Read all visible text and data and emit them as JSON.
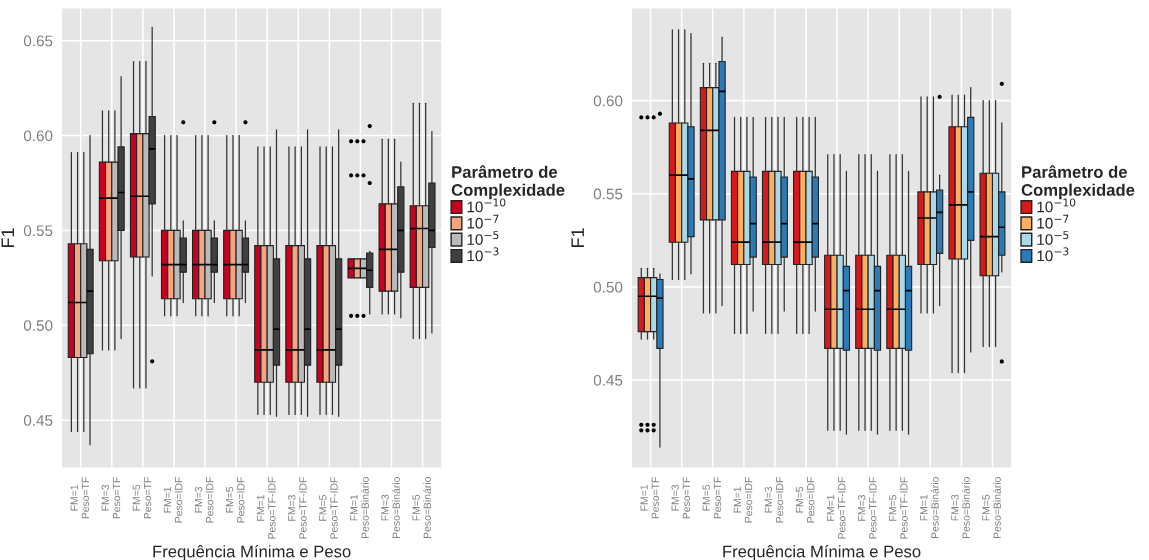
{
  "chart_data": [
    {
      "type": "box",
      "xlabel": "Frequência Mínima e Peso",
      "ylabel": "F1",
      "legend_title": "Parâmetro de\nComplexidade",
      "legend": "right",
      "grid": true,
      "categories": [
        "FM=1\nPeso=TF",
        "FM=3\nPeso=TF",
        "FM=5\nPeso=TF",
        "FM=1\nPeso=IDF",
        "FM=3\nPeso=IDF",
        "FM=5\nPeso=IDF",
        "FM=1\nPeso=TF-IDF",
        "FM=3\nPeso=TF-IDF",
        "FM=5\nPeso=TF-IDF",
        "FM=1\nPeso=Binário",
        "FM=3\nPeso=Binário",
        "FM=5\nPeso=Binário"
      ],
      "ylim": [
        0.425,
        0.667
      ],
      "yticks": [
        {
          "value": 0.45,
          "label": "0.45"
        },
        {
          "value": 0.5,
          "label": "0.50"
        },
        {
          "value": 0.55,
          "label": "0.55"
        },
        {
          "value": 0.6,
          "label": "0.60"
        },
        {
          "value": 0.65,
          "label": "0.65"
        }
      ],
      "series": [
        {
          "name": "10$^{−10}$",
          "color": "#ca0020",
          "boxes": [
            {
              "low": 0.444,
              "q1": 0.483,
              "median": 0.512,
              "q3": 0.543,
              "high": 0.591
            },
            {
              "low": 0.487,
              "q1": 0.534,
              "median": 0.567,
              "q3": 0.586,
              "high": 0.613
            },
            {
              "low": 0.467,
              "q1": 0.536,
              "median": 0.568,
              "q3": 0.601,
              "high": 0.639
            },
            {
              "low": 0.505,
              "q1": 0.514,
              "median": 0.532,
              "q3": 0.55,
              "high": 0.6
            },
            {
              "low": 0.505,
              "q1": 0.514,
              "median": 0.532,
              "q3": 0.55,
              "high": 0.6
            },
            {
              "low": 0.505,
              "q1": 0.514,
              "median": 0.532,
              "q3": 0.55,
              "high": 0.6
            },
            {
              "low": 0.453,
              "q1": 0.47,
              "median": 0.487,
              "q3": 0.542,
              "high": 0.594
            },
            {
              "low": 0.453,
              "q1": 0.47,
              "median": 0.487,
              "q3": 0.542,
              "high": 0.594
            },
            {
              "low": 0.453,
              "q1": 0.47,
              "median": 0.487,
              "q3": 0.542,
              "high": 0.594
            },
            {
              "low": 0.525,
              "q1": 0.525,
              "median": 0.53,
              "q3": 0.535,
              "high": 0.535,
              "outliers": [
                0.505,
                0.579,
                0.597
              ]
            },
            {
              "low": 0.506,
              "q1": 0.518,
              "median": 0.54,
              "q3": 0.564,
              "high": 0.598
            },
            {
              "low": 0.493,
              "q1": 0.52,
              "median": 0.551,
              "q3": 0.563,
              "high": 0.617
            }
          ]
        },
        {
          "name": "10$^{−7}$",
          "color": "#f4a582",
          "boxes": [
            {
              "low": 0.444,
              "q1": 0.483,
              "median": 0.512,
              "q3": 0.543,
              "high": 0.591
            },
            {
              "low": 0.487,
              "q1": 0.534,
              "median": 0.567,
              "q3": 0.586,
              "high": 0.613
            },
            {
              "low": 0.467,
              "q1": 0.536,
              "median": 0.568,
              "q3": 0.601,
              "high": 0.639
            },
            {
              "low": 0.505,
              "q1": 0.514,
              "median": 0.532,
              "q3": 0.55,
              "high": 0.6
            },
            {
              "low": 0.505,
              "q1": 0.514,
              "median": 0.532,
              "q3": 0.55,
              "high": 0.6
            },
            {
              "low": 0.505,
              "q1": 0.514,
              "median": 0.532,
              "q3": 0.55,
              "high": 0.6
            },
            {
              "low": 0.453,
              "q1": 0.47,
              "median": 0.487,
              "q3": 0.542,
              "high": 0.594
            },
            {
              "low": 0.453,
              "q1": 0.47,
              "median": 0.487,
              "q3": 0.542,
              "high": 0.594
            },
            {
              "low": 0.453,
              "q1": 0.47,
              "median": 0.487,
              "q3": 0.542,
              "high": 0.594
            },
            {
              "low": 0.525,
              "q1": 0.525,
              "median": 0.53,
              "q3": 0.535,
              "high": 0.535,
              "outliers": [
                0.505,
                0.579,
                0.597
              ]
            },
            {
              "low": 0.506,
              "q1": 0.518,
              "median": 0.54,
              "q3": 0.564,
              "high": 0.598
            },
            {
              "low": 0.493,
              "q1": 0.52,
              "median": 0.551,
              "q3": 0.563,
              "high": 0.617
            }
          ]
        },
        {
          "name": "10$^{−5}$",
          "color": "#bababa",
          "boxes": [
            {
              "low": 0.444,
              "q1": 0.483,
              "median": 0.512,
              "q3": 0.543,
              "high": 0.591
            },
            {
              "low": 0.487,
              "q1": 0.534,
              "median": 0.567,
              "q3": 0.586,
              "high": 0.613
            },
            {
              "low": 0.467,
              "q1": 0.536,
              "median": 0.568,
              "q3": 0.601,
              "high": 0.639
            },
            {
              "low": 0.505,
              "q1": 0.514,
              "median": 0.532,
              "q3": 0.55,
              "high": 0.6
            },
            {
              "low": 0.505,
              "q1": 0.514,
              "median": 0.532,
              "q3": 0.55,
              "high": 0.6
            },
            {
              "low": 0.505,
              "q1": 0.514,
              "median": 0.532,
              "q3": 0.55,
              "high": 0.6
            },
            {
              "low": 0.453,
              "q1": 0.47,
              "median": 0.487,
              "q3": 0.542,
              "high": 0.594
            },
            {
              "low": 0.453,
              "q1": 0.47,
              "median": 0.487,
              "q3": 0.542,
              "high": 0.594
            },
            {
              "low": 0.453,
              "q1": 0.47,
              "median": 0.487,
              "q3": 0.542,
              "high": 0.594
            },
            {
              "low": 0.525,
              "q1": 0.525,
              "median": 0.53,
              "q3": 0.535,
              "high": 0.535,
              "outliers": [
                0.505,
                0.579,
                0.597
              ]
            },
            {
              "low": 0.506,
              "q1": 0.518,
              "median": 0.54,
              "q3": 0.564,
              "high": 0.598
            },
            {
              "low": 0.493,
              "q1": 0.52,
              "median": 0.551,
              "q3": 0.563,
              "high": 0.617
            }
          ]
        },
        {
          "name": "10$^{−3}$",
          "color": "#404040",
          "boxes": [
            {
              "low": 0.437,
              "q1": 0.485,
              "median": 0.518,
              "q3": 0.54,
              "high": 0.6
            },
            {
              "low": 0.493,
              "q1": 0.55,
              "median": 0.57,
              "q3": 0.594,
              "high": 0.631
            },
            {
              "low": 0.526,
              "q1": 0.564,
              "median": 0.593,
              "q3": 0.61,
              "high": 0.657,
              "outliers": [
                0.481
              ]
            },
            {
              "low": 0.512,
              "q1": 0.528,
              "median": 0.532,
              "q3": 0.546,
              "high": 0.555,
              "outliers": [
                0.607
              ]
            },
            {
              "low": 0.512,
              "q1": 0.528,
              "median": 0.532,
              "q3": 0.546,
              "high": 0.555,
              "outliers": [
                0.607
              ]
            },
            {
              "low": 0.512,
              "q1": 0.528,
              "median": 0.532,
              "q3": 0.546,
              "high": 0.555,
              "outliers": [
                0.607
              ]
            },
            {
              "low": 0.452,
              "q1": 0.479,
              "median": 0.498,
              "q3": 0.535,
              "high": 0.603
            },
            {
              "low": 0.452,
              "q1": 0.479,
              "median": 0.498,
              "q3": 0.535,
              "high": 0.603
            },
            {
              "low": 0.452,
              "q1": 0.479,
              "median": 0.498,
              "q3": 0.535,
              "high": 0.603
            },
            {
              "low": 0.506,
              "q1": 0.52,
              "median": 0.529,
              "q3": 0.538,
              "high": 0.539,
              "outliers": [
                0.575,
                0.605
              ]
            },
            {
              "low": 0.504,
              "q1": 0.528,
              "median": 0.55,
              "q3": 0.573,
              "high": 0.586
            },
            {
              "low": 0.496,
              "q1": 0.541,
              "median": 0.55,
              "q3": 0.575,
              "high": 0.602
            }
          ]
        }
      ]
    },
    {
      "type": "box",
      "xlabel": "Frequência Mínima e Peso",
      "ylabel": "F1",
      "legend_title": "Parâmetro de\nComplexidade",
      "legend": "right",
      "grid": true,
      "categories": [
        "FM=1\nPeso=TF",
        "FM=3\nPeso=TF",
        "FM=5\nPeso=TF",
        "FM=1\nPeso=IDF",
        "FM=3\nPeso=IDF",
        "FM=5\nPeso=IDF",
        "FM=1\nPeso=TF-IDF",
        "FM=3\nPeso=TF-IDF",
        "FM=5\nPeso=TF-IDF",
        "FM=1\nPeso=Binário",
        "FM=3\nPeso=Binário",
        "FM=5\nPeso=Binário"
      ],
      "ylim": [
        0.403,
        0.6495
      ],
      "yticks": [
        {
          "value": 0.45,
          "label": "0.45"
        },
        {
          "value": 0.5,
          "label": "0.50"
        },
        {
          "value": 0.55,
          "label": "0.55"
        },
        {
          "value": 0.6,
          "label": "0.60"
        }
      ],
      "series": [
        {
          "name": "10$^{−10}$",
          "color": "#d7191c",
          "boxes": [
            {
              "low": 0.472,
              "q1": 0.476,
              "median": 0.495,
              "q3": 0.505,
              "high": 0.51,
              "outliers": [
                0.423,
                0.426,
                0.591
              ]
            },
            {
              "low": 0.504,
              "q1": 0.524,
              "median": 0.56,
              "q3": 0.588,
              "high": 0.638
            },
            {
              "low": 0.486,
              "q1": 0.536,
              "median": 0.584,
              "q3": 0.607,
              "high": 0.62
            },
            {
              "low": 0.475,
              "q1": 0.512,
              "median": 0.524,
              "q3": 0.562,
              "high": 0.591
            },
            {
              "low": 0.475,
              "q1": 0.512,
              "median": 0.524,
              "q3": 0.562,
              "high": 0.591
            },
            {
              "low": 0.475,
              "q1": 0.512,
              "median": 0.524,
              "q3": 0.562,
              "high": 0.591
            },
            {
              "low": 0.423,
              "q1": 0.467,
              "median": 0.488,
              "q3": 0.517,
              "high": 0.571
            },
            {
              "low": 0.423,
              "q1": 0.467,
              "median": 0.488,
              "q3": 0.517,
              "high": 0.571
            },
            {
              "low": 0.423,
              "q1": 0.467,
              "median": 0.488,
              "q3": 0.517,
              "high": 0.571
            },
            {
              "low": 0.486,
              "q1": 0.512,
              "median": 0.537,
              "q3": 0.551,
              "high": 0.602
            },
            {
              "low": 0.454,
              "q1": 0.515,
              "median": 0.544,
              "q3": 0.586,
              "high": 0.603
            },
            {
              "low": 0.468,
              "q1": 0.506,
              "median": 0.527,
              "q3": 0.561,
              "high": 0.6
            }
          ]
        },
        {
          "name": "10$^{−7}$",
          "color": "#fdae61",
          "boxes": [
            {
              "low": 0.472,
              "q1": 0.476,
              "median": 0.495,
              "q3": 0.505,
              "high": 0.51,
              "outliers": [
                0.423,
                0.426,
                0.591
              ]
            },
            {
              "low": 0.504,
              "q1": 0.524,
              "median": 0.56,
              "q3": 0.588,
              "high": 0.638
            },
            {
              "low": 0.486,
              "q1": 0.536,
              "median": 0.584,
              "q3": 0.607,
              "high": 0.62
            },
            {
              "low": 0.475,
              "q1": 0.512,
              "median": 0.524,
              "q3": 0.562,
              "high": 0.591
            },
            {
              "low": 0.475,
              "q1": 0.512,
              "median": 0.524,
              "q3": 0.562,
              "high": 0.591
            },
            {
              "low": 0.475,
              "q1": 0.512,
              "median": 0.524,
              "q3": 0.562,
              "high": 0.591
            },
            {
              "low": 0.423,
              "q1": 0.467,
              "median": 0.488,
              "q3": 0.517,
              "high": 0.571
            },
            {
              "low": 0.423,
              "q1": 0.467,
              "median": 0.488,
              "q3": 0.517,
              "high": 0.571
            },
            {
              "low": 0.423,
              "q1": 0.467,
              "median": 0.488,
              "q3": 0.517,
              "high": 0.571
            },
            {
              "low": 0.486,
              "q1": 0.512,
              "median": 0.537,
              "q3": 0.551,
              "high": 0.602
            },
            {
              "low": 0.454,
              "q1": 0.515,
              "median": 0.544,
              "q3": 0.586,
              "high": 0.603
            },
            {
              "low": 0.468,
              "q1": 0.506,
              "median": 0.527,
              "q3": 0.561,
              "high": 0.6
            }
          ]
        },
        {
          "name": "10$^{−5}$",
          "color": "#abd9e9",
          "boxes": [
            {
              "low": 0.472,
              "q1": 0.476,
              "median": 0.495,
              "q3": 0.505,
              "high": 0.51,
              "outliers": [
                0.423,
                0.426,
                0.591
              ]
            },
            {
              "low": 0.504,
              "q1": 0.524,
              "median": 0.56,
              "q3": 0.588,
              "high": 0.638
            },
            {
              "low": 0.486,
              "q1": 0.536,
              "median": 0.584,
              "q3": 0.607,
              "high": 0.62
            },
            {
              "low": 0.475,
              "q1": 0.512,
              "median": 0.524,
              "q3": 0.562,
              "high": 0.591
            },
            {
              "low": 0.475,
              "q1": 0.512,
              "median": 0.524,
              "q3": 0.562,
              "high": 0.591
            },
            {
              "low": 0.475,
              "q1": 0.512,
              "median": 0.524,
              "q3": 0.562,
              "high": 0.591
            },
            {
              "low": 0.423,
              "q1": 0.467,
              "median": 0.488,
              "q3": 0.517,
              "high": 0.571
            },
            {
              "low": 0.423,
              "q1": 0.467,
              "median": 0.488,
              "q3": 0.517,
              "high": 0.571
            },
            {
              "low": 0.423,
              "q1": 0.467,
              "median": 0.488,
              "q3": 0.517,
              "high": 0.571
            },
            {
              "low": 0.486,
              "q1": 0.512,
              "median": 0.537,
              "q3": 0.551,
              "high": 0.602
            },
            {
              "low": 0.454,
              "q1": 0.515,
              "median": 0.544,
              "q3": 0.586,
              "high": 0.603
            },
            {
              "low": 0.468,
              "q1": 0.506,
              "median": 0.527,
              "q3": 0.561,
              "high": 0.6
            }
          ]
        },
        {
          "name": "10$^{−3}$",
          "color": "#2c7bb6",
          "boxes": [
            {
              "low": 0.414,
              "q1": 0.467,
              "median": 0.494,
              "q3": 0.504,
              "high": 0.507,
              "outliers": [
                0.593
              ]
            },
            {
              "low": 0.507,
              "q1": 0.527,
              "median": 0.558,
              "q3": 0.586,
              "high": 0.636
            },
            {
              "low": 0.49,
              "q1": 0.536,
              "median": 0.605,
              "q3": 0.621,
              "high": 0.634
            },
            {
              "low": 0.487,
              "q1": 0.516,
              "median": 0.534,
              "q3": 0.559,
              "high": 0.591
            },
            {
              "low": 0.487,
              "q1": 0.516,
              "median": 0.534,
              "q3": 0.559,
              "high": 0.591
            },
            {
              "low": 0.487,
              "q1": 0.516,
              "median": 0.534,
              "q3": 0.559,
              "high": 0.591
            },
            {
              "low": 0.421,
              "q1": 0.466,
              "median": 0.498,
              "q3": 0.511,
              "high": 0.562
            },
            {
              "low": 0.421,
              "q1": 0.466,
              "median": 0.498,
              "q3": 0.511,
              "high": 0.562
            },
            {
              "low": 0.421,
              "q1": 0.466,
              "median": 0.498,
              "q3": 0.511,
              "high": 0.562
            },
            {
              "low": 0.49,
              "q1": 0.518,
              "median": 0.54,
              "q3": 0.552,
              "high": 0.56,
              "outliers": [
                0.602
              ]
            },
            {
              "low": 0.465,
              "q1": 0.525,
              "median": 0.551,
              "q3": 0.591,
              "high": 0.607
            },
            {
              "low": 0.508,
              "q1": 0.517,
              "median": 0.532,
              "q3": 0.551,
              "high": 0.588,
              "outliers": [
                0.46,
                0.609
              ]
            }
          ]
        }
      ]
    }
  ]
}
